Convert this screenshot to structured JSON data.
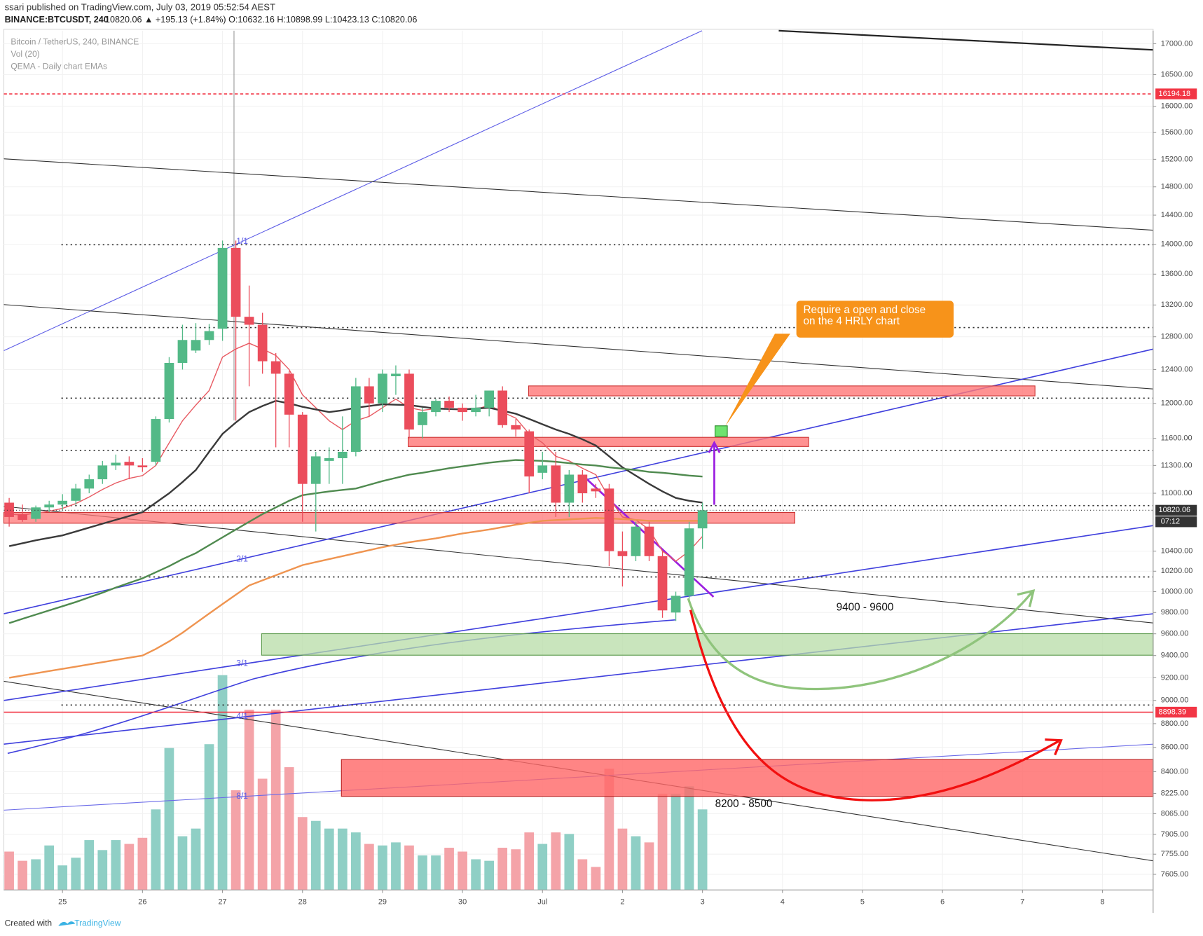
{
  "header": {
    "published": "ssari published on TradingView.com, July 03, 2019 05:52:54 AEST",
    "symbol": "BINANCE:BTCUSDT, 240",
    "quote": "10820.06 ▲ +195.13 (+1.84%) O:10632.16 H:10898.99 L:10423.13 C:10820.06"
  },
  "footer": {
    "created": "Created with",
    "brand": "TradingView"
  },
  "chart_data": {
    "type": "candlestick",
    "log_scale": true,
    "legend": [
      "Bitcoin / TetherUS, 240, BINANCE",
      "Vol (20)",
      "QEMA - Daily chart EMAs"
    ],
    "up_color": "#53b987",
    "down_color": "#eb4d5c",
    "up_volume_color": "#8fcfc5",
    "down_volume_color": "#f4a3a8",
    "xlim": [
      -0.4,
      85.8
    ],
    "xticks": [
      {
        "value": 4,
        "label": "25"
      },
      {
        "value": 10,
        "label": "26"
      },
      {
        "value": 16,
        "label": "27"
      },
      {
        "value": 22,
        "label": "28"
      },
      {
        "value": 28,
        "label": "29"
      },
      {
        "value": 34,
        "label": "30"
      },
      {
        "value": 40,
        "label": "Jul"
      },
      {
        "value": 46,
        "label": "2"
      },
      {
        "value": 52,
        "label": "3"
      },
      {
        "value": 58,
        "label": "4"
      },
      {
        "value": 64,
        "label": "5"
      },
      {
        "value": 70,
        "label": "6"
      },
      {
        "value": 76,
        "label": "7"
      },
      {
        "value": 82,
        "label": "8"
      }
    ],
    "ylim": [
      7491,
      17216
    ],
    "yticks": [
      {
        "value": 17000,
        "label": "17000.00"
      },
      {
        "value": 16500,
        "label": "16500.00"
      },
      {
        "value": 16000,
        "label": "16000.00"
      },
      {
        "value": 15600,
        "label": "15600.00"
      },
      {
        "value": 15200,
        "label": "15200.00"
      },
      {
        "value": 14800,
        "label": "14800.00"
      },
      {
        "value": 14400,
        "label": "14400.00"
      },
      {
        "value": 14000,
        "label": "14000.00"
      },
      {
        "value": 13600,
        "label": "13600.00"
      },
      {
        "value": 13200,
        "label": "13200.00"
      },
      {
        "value": 12800,
        "label": "12800.00"
      },
      {
        "value": 12400,
        "label": "12400.00"
      },
      {
        "value": 12000,
        "label": "12000.00"
      },
      {
        "value": 11600,
        "label": "11600.00"
      },
      {
        "value": 11300,
        "label": "11300.00"
      },
      {
        "value": 11000,
        "label": "11000.00"
      },
      {
        "value": 10400,
        "label": "10400.00"
      },
      {
        "value": 10200,
        "label": "10200.00"
      },
      {
        "value": 10000,
        "label": "10000.00"
      },
      {
        "value": 9800,
        "label": "9800.00"
      },
      {
        "value": 9600,
        "label": "9600.00"
      },
      {
        "value": 9400,
        "label": "9400.00"
      },
      {
        "value": 9200,
        "label": "9200.00"
      },
      {
        "value": 9000,
        "label": "9000.00"
      },
      {
        "value": 8800,
        "label": "8800.00"
      },
      {
        "value": 8600,
        "label": "8600.00"
      },
      {
        "value": 8400,
        "label": "8400.00"
      },
      {
        "value": 8225,
        "label": "8225.00"
      },
      {
        "value": 8065,
        "label": "8065.00"
      },
      {
        "value": 7905,
        "label": "7905.00"
      },
      {
        "value": 7755,
        "label": "7755.00"
      },
      {
        "value": 7605,
        "label": "7605.00"
      }
    ],
    "open": [
      10900,
      10780,
      10730,
      10850,
      10880,
      10920,
      11050,
      11150,
      11300,
      11340,
      11300,
      11340,
      11820,
      12480,
      12630,
      12760,
      12900,
      13950,
      13050,
      12950,
      12500,
      12350,
      11870,
      11100,
      11350,
      11380,
      11450,
      12200,
      12000,
      12320,
      12350,
      11750,
      11900,
      12030,
      11950,
      11900,
      11950,
      12150,
      11750,
      11680,
      11220,
      11300,
      10900,
      11200,
      11050,
      11050,
      10400,
      10350,
      10650,
      10350,
      9800,
      9960,
      10632.16
    ],
    "high": [
      10950,
      10880,
      10870,
      10920,
      10990,
      11100,
      11200,
      11350,
      11420,
      11400,
      11380,
      11850,
      12550,
      12950,
      12970,
      12960,
      14050,
      14050,
      13450,
      13100,
      12600,
      12380,
      11900,
      11450,
      11500,
      11850,
      12300,
      12300,
      12400,
      12450,
      12400,
      11950,
      12050,
      12080,
      12000,
      12100,
      12150,
      12200,
      11820,
      11700,
      11450,
      11450,
      11250,
      11250,
      11100,
      11100,
      10600,
      10700,
      10700,
      10400,
      10000,
      10700,
      10898.99
    ],
    "low": [
      10650,
      10700,
      10700,
      10800,
      10820,
      10880,
      11000,
      11100,
      11250,
      11150,
      11230,
      11300,
      11780,
      12400,
      12600,
      12700,
      12750,
      11800,
      12200,
      12350,
      11500,
      11500,
      10700,
      10600,
      11100,
      11100,
      11400,
      11850,
      11900,
      12100,
      11600,
      11600,
      11850,
      11900,
      11800,
      11850,
      11850,
      11720,
      11620,
      11000,
      11150,
      10750,
      10750,
      10900,
      10950,
      10250,
      10050,
      10300,
      10300,
      9750,
      9720,
      9900,
      10423.13
    ],
    "close": [
      10750,
      10720,
      10850,
      10880,
      10920,
      11050,
      11150,
      11300,
      11330,
      11300,
      11280,
      11820,
      12480,
      12760,
      12760,
      12870,
      13950,
      13050,
      12950,
      12500,
      12350,
      11870,
      11100,
      11400,
      11380,
      11450,
      12200,
      12000,
      12350,
      12350,
      11700,
      11900,
      12030,
      11950,
      11900,
      11950,
      12150,
      11750,
      11700,
      11180,
      11300,
      10900,
      11200,
      11000,
      11020,
      10400,
      10350,
      10650,
      10350,
      9820,
      9960,
      10632,
      10820.06
    ],
    "volume": [
      50,
      38,
      40,
      58,
      32,
      42,
      65,
      52,
      65,
      60,
      68,
      105,
      185,
      70,
      80,
      190,
      280,
      130,
      235,
      145,
      235,
      160,
      95,
      90,
      80,
      80,
      75,
      60,
      58,
      62,
      58,
      45,
      45,
      55,
      50,
      40,
      38,
      55,
      53,
      75,
      60,
      75,
      73,
      40,
      30,
      158,
      80,
      70,
      62,
      125,
      125,
      135,
      105
    ],
    "series": [
      {
        "color": "#e85b63",
        "values": [
          10780,
          10770,
          10790,
          10810,
          10840,
          10890,
          10960,
          11040,
          11110,
          11160,
          11190,
          11300,
          11550,
          11800,
          11980,
          12150,
          12550,
          12650,
          12720,
          12650,
          12570,
          12400,
          12100,
          11950,
          11800,
          11700,
          11800,
          11850,
          11950,
          12050,
          11950,
          11920,
          11940,
          11940,
          11930,
          11930,
          11980,
          11900,
          11830,
          11650,
          11550,
          11400,
          11350,
          11270,
          11200,
          10950,
          10750,
          10720,
          10620,
          10400,
          10300,
          10400,
          10550
        ]
      },
      {
        "color": "#3a3a3a",
        "values": [
          10450,
          10480,
          10510,
          10535,
          10560,
          10600,
          10640,
          10680,
          10720,
          10760,
          10800,
          10900,
          11000,
          11120,
          11250,
          11450,
          11650,
          11780,
          11900,
          11970,
          12030,
          12000,
          11960,
          11930,
          11900,
          11920,
          11950,
          11970,
          11990,
          11985,
          11980,
          11960,
          11940,
          11935,
          11930,
          11940,
          11950,
          11915,
          11880,
          11820,
          11760,
          11700,
          11650,
          11590,
          11520,
          11400,
          11280,
          11190,
          11100,
          11020,
          10950,
          10920,
          10900
        ]
      },
      {
        "color": "#4f8a4f",
        "values": [
          9700,
          9740,
          9780,
          9820,
          9860,
          9900,
          9945,
          9990,
          10040,
          10085,
          10130,
          10190,
          10250,
          10320,
          10380,
          10460,
          10540,
          10620,
          10700,
          10780,
          10850,
          10920,
          10980,
          11000,
          11020,
          11035,
          11050,
          11090,
          11130,
          11165,
          11200,
          11220,
          11245,
          11270,
          11290,
          11310,
          11330,
          11345,
          11360,
          11355,
          11350,
          11340,
          11325,
          11310,
          11300,
          11280,
          11265,
          11250,
          11230,
          11220,
          11205,
          11190,
          11180
        ]
      },
      {
        "color": "#ef9450",
        "values": [
          9200,
          9220,
          9240,
          9260,
          9280,
          9300,
          9320,
          9340,
          9360,
          9380,
          9400,
          9460,
          9530,
          9610,
          9700,
          9790,
          9880,
          9970,
          10060,
          10110,
          10160,
          10210,
          10260,
          10290,
          10320,
          10350,
          10380,
          10410,
          10440,
          10465,
          10490,
          10510,
          10530,
          10555,
          10580,
          10600,
          10620,
          10645,
          10670,
          10690,
          10710,
          10718,
          10725,
          10733,
          10740,
          10735,
          10728,
          10720,
          10710,
          10710,
          10710,
          10710,
          10710
        ]
      }
    ],
    "price_lines": [
      {
        "value": 16194.18,
        "label": "16194.18",
        "color": "#f23645",
        "style": "dashed"
      },
      {
        "value": 10820.06,
        "label": "10820.06",
        "color": "#333333",
        "style": "dotted"
      },
      {
        "value": 8898.39,
        "label": "8898.39",
        "color": "#f23645",
        "style": "solid"
      }
    ],
    "countdown": "07:12",
    "fib_labels": [
      "1/1",
      "2/1",
      "3/1",
      "4/1",
      "8/1"
    ],
    "annotations": [
      "9400 - 9600",
      "8200 - 8500"
    ],
    "callout": [
      "Require a open and close",
      "on the 4 HRLY chart"
    ]
  }
}
